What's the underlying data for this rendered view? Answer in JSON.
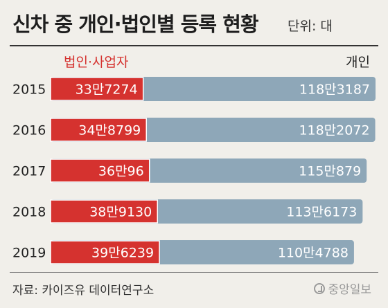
{
  "header": {
    "title": "신차 중 개인·법인별 등록 현황",
    "unit": "단위: 대"
  },
  "footer": {
    "source": "자료: 카이즈유 데이터연구소",
    "logo": "중앙일보"
  },
  "colors": {
    "corporate": "#d5322f",
    "individual": "#8ea7b8",
    "background": "#f1efea"
  },
  "chart_data": {
    "type": "bar",
    "orientation": "horizontal",
    "categories": [
      "2015",
      "2016",
      "2017",
      "2018",
      "2019"
    ],
    "series": [
      {
        "name": "법인·사업자",
        "values": [
          337274,
          348799,
          360096,
          389130,
          396239
        ],
        "labels": [
          "33만7274",
          "34만8799",
          "36만96",
          "38만9130",
          "39만6239"
        ]
      },
      {
        "name": "개인",
        "values": [
          1183187,
          1182072,
          1150879,
          1136173,
          1104788
        ],
        "labels": [
          "118만3187",
          "118만2072",
          "115만879",
          "113만6173",
          "110만4788"
        ]
      }
    ],
    "overlaid": true,
    "xlim": [
      0,
      1183187
    ]
  }
}
